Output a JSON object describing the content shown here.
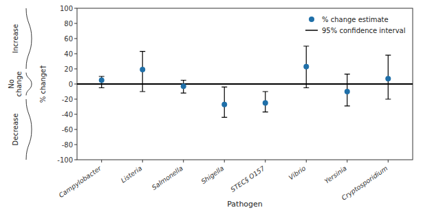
{
  "chart_data": {
    "type": "scatter",
    "categories": [
      "Campylobacter",
      "Listeria",
      "Salmonella",
      "Shigella",
      "STEC§ O157",
      "Vibrio",
      "Yersinia",
      "Cryptosporidium"
    ],
    "xlabel": "Pathogen",
    "ylabel": "% change†",
    "ylim": [
      -100,
      100
    ],
    "yticks": [
      -100,
      -80,
      -60,
      -40,
      -20,
      0,
      20,
      40,
      60,
      80,
      100
    ],
    "grid": false,
    "legend": "upper right",
    "series": [
      {
        "name": "% change estimate",
        "color": "#1f6fa8",
        "marker": "circle",
        "values": [
          5,
          19,
          -3,
          -27,
          -25,
          23,
          -10,
          7
        ],
        "error_bars": {
          "name": "95% confidence interval",
          "color": "black",
          "lower": [
            -5,
            -10,
            -12,
            -44,
            -37,
            -5,
            -29,
            -20
          ],
          "upper": [
            10,
            43,
            5,
            -4,
            -10,
            50,
            13,
            38
          ]
        }
      }
    ],
    "reference_lines": [
      {
        "value": 0,
        "color": "black"
      }
    ],
    "annotations": [
      {
        "text": "Increase",
        "from": 20,
        "to": 100
      },
      {
        "text": "No\nchange",
        "from": -15,
        "to": 15
      },
      {
        "text": "Decrease",
        "from": -100,
        "to": -20
      }
    ]
  }
}
